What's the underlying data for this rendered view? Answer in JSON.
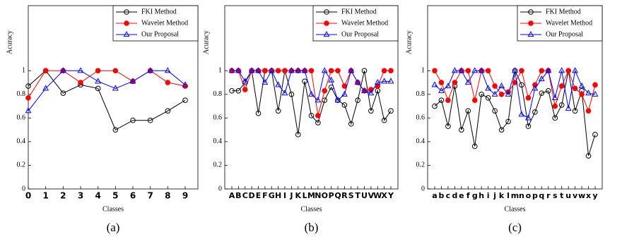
{
  "chart_data": [
    {
      "type": "line",
      "caption": "(a)",
      "xlabel": "Classes",
      "ylabel": "Acuracy",
      "categories": [
        "0",
        "1",
        "2",
        "3",
        "4",
        "5",
        "6",
        "7",
        "8",
        "9"
      ],
      "ylim": [
        0,
        1.55
      ],
      "yticks": [
        0,
        0.2,
        0.4,
        0.6,
        0.8,
        1
      ],
      "legend": "upper right",
      "series": [
        {
          "name": "FKI Method",
          "color": "#000000",
          "marker": "circle-open",
          "values": [
            0.87,
            1,
            0.81,
            0.88,
            0.85,
            0.5,
            0.58,
            0.58,
            0.66,
            0.75
          ]
        },
        {
          "name": "Wavelet Method",
          "color": "#ff0000",
          "marker": "circle",
          "values": [
            0.77,
            1,
            1,
            0.9,
            1,
            1,
            0.91,
            1,
            0.9,
            0.87
          ]
        },
        {
          "name": "Our Proposal",
          "color": "#0000ff",
          "marker": "triangle-open",
          "values": [
            0.66,
            0.85,
            1,
            1,
            0.91,
            0.85,
            0.91,
            1,
            1,
            0.88
          ]
        }
      ]
    },
    {
      "type": "line",
      "caption": "(b)",
      "xlabel": "Classes",
      "ylabel": "Acuracy",
      "categories": [
        "A",
        "B",
        "C",
        "D",
        "E",
        "F",
        "G",
        "H",
        "I",
        "J",
        "K",
        "L",
        "M",
        "N",
        "O",
        "P",
        "Q",
        "R",
        "S",
        "T",
        "U",
        "V",
        "W",
        "X",
        "Y"
      ],
      "ylim": [
        0,
        1.55
      ],
      "yticks": [
        0,
        0.2,
        0.4,
        0.6,
        0.8,
        1
      ],
      "legend": "upper right",
      "series": [
        {
          "name": "FKI Method",
          "color": "#000000",
          "marker": "circle-open",
          "values": [
            0.83,
            0.83,
            0.9,
            1,
            0.64,
            1,
            1,
            0.66,
            1,
            0.8,
            0.46,
            0.91,
            0.62,
            0.56,
            0.75,
            0.86,
            0.75,
            0.71,
            0.55,
            0.75,
            1,
            0.66,
            0.83,
            0.58,
            0.66
          ]
        },
        {
          "name": "Wavelet Method",
          "color": "#ff0000",
          "marker": "circle",
          "values": [
            1,
            1,
            0.84,
            1,
            1,
            1,
            1,
            1,
            1,
            1,
            1,
            1,
            1,
            0.62,
            0.83,
            1,
            1,
            0.87,
            1,
            0.9,
            0.83,
            0.84,
            0.87,
            1,
            1
          ]
        },
        {
          "name": "Our Proposal",
          "color": "#0000ff",
          "marker": "triangle-open",
          "values": [
            1,
            1,
            0.91,
            1,
            1,
            0.9,
            1,
            0.88,
            0.81,
            1,
            1,
            1,
            0.8,
            0.75,
            1,
            0.92,
            0.75,
            0.8,
            1,
            0.9,
            0.83,
            0.81,
            0.9,
            0.91,
            0.91
          ]
        }
      ]
    },
    {
      "type": "line",
      "caption": "(c)",
      "xlabel": "Classes",
      "ylabel": "Acuracy",
      "categories": [
        "a",
        "b",
        "c",
        "d",
        "e",
        "f",
        "g",
        "h",
        "i",
        "j",
        "k",
        "l",
        "m",
        "n",
        "o",
        "p",
        "q",
        "r",
        "s",
        "t",
        "u",
        "v",
        "w",
        "x",
        "y"
      ],
      "ylim": [
        0,
        1.55
      ],
      "yticks": [
        0,
        0.2,
        0.4,
        0.6,
        0.8,
        1
      ],
      "legend": "upper right",
      "series": [
        {
          "name": "FKI Method",
          "color": "#000000",
          "marker": "circle-open",
          "values": [
            0.7,
            0.75,
            0.53,
            0.87,
            0.5,
            0.66,
            0.36,
            0.8,
            0.77,
            0.66,
            0.5,
            0.57,
            1,
            0.88,
            0.53,
            0.65,
            0.81,
            0.83,
            0.6,
            0.71,
            1,
            0.66,
            0.83,
            0.28,
            0.46
          ]
        },
        {
          "name": "Wavelet Method",
          "color": "#ff0000",
          "marker": "circle",
          "values": [
            1,
            0.9,
            0.75,
            0.9,
            1,
            1,
            0.75,
            1,
            1,
            0.87,
            0.8,
            0.82,
            0.9,
            1,
            0.77,
            0.88,
            1,
            1,
            0.7,
            0.87,
            1,
            0.85,
            0.8,
            0.66,
            0.88
          ]
        },
        {
          "name": "Our Proposal",
          "color": "#0000ff",
          "marker": "triangle-open",
          "values": [
            0.88,
            0.83,
            0.87,
            1,
            1,
            0.9,
            1,
            1,
            0.85,
            0.8,
            0.87,
            0.8,
            1,
            0.63,
            0.6,
            0.85,
            0.93,
            1,
            0.77,
            1,
            0.68,
            1,
            0.87,
            0.81,
            0.8
          ]
        }
      ]
    }
  ]
}
